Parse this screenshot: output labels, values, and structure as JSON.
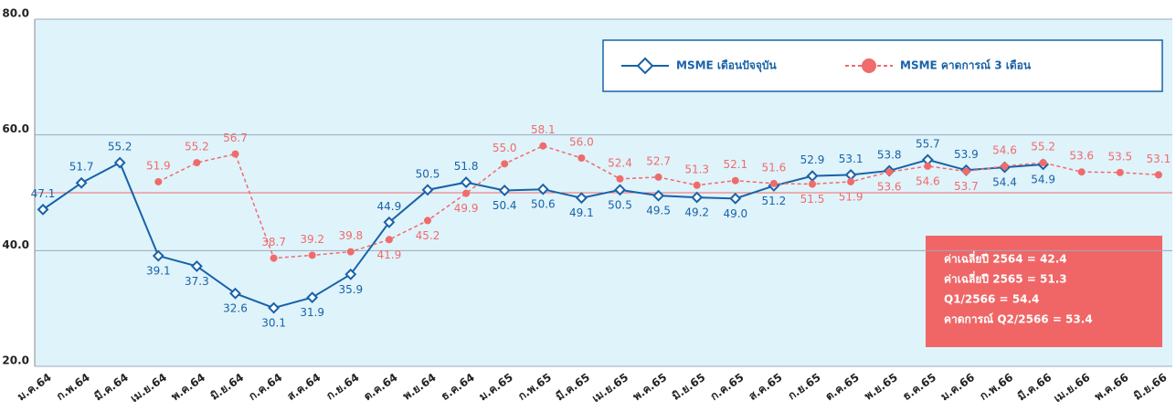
{
  "chart_data": {
    "type": "line",
    "categories": [
      "ม.ค.64",
      "ก.พ.64",
      "มี.ค.64",
      "เม.ย.64",
      "พ.ค.64",
      "มิ.ย.64",
      "ก.ค.64",
      "ส.ค.64",
      "ก.ย.64",
      "ต.ค.64",
      "พ.ย.64",
      "ธ.ค.64",
      "ม.ค.65",
      "ก.พ.65",
      "มี.ค.65",
      "เม.ย.65",
      "พ.ค.65",
      "มิ.ย.65",
      "ก.ค.65",
      "ส.ค.65",
      "ก.ย.65",
      "ต.ค.65",
      "พ.ย.65",
      "ธ.ค.65",
      "ม.ค.66",
      "ก.พ.66",
      "มี.ค.66",
      "เม.ย.66",
      "พ.ค.66",
      "มิ.ย.66"
    ],
    "series": [
      {
        "name": "MSME เดือนปัจจุบัน",
        "color": "#1862a8",
        "marker": "diamond",
        "dashed": false,
        "values": [
          47.1,
          51.7,
          55.2,
          39.1,
          37.3,
          32.6,
          30.1,
          31.9,
          35.9,
          44.9,
          50.5,
          51.8,
          50.4,
          50.6,
          49.1,
          50.5,
          49.5,
          49.2,
          49.0,
          51.2,
          52.9,
          53.1,
          53.8,
          55.7,
          53.9,
          54.4,
          54.9,
          null,
          null,
          null
        ],
        "value_labels": [
          "47.1",
          "51.7",
          "55.2",
          "39.1",
          "37.3",
          "32.6",
          "30.1",
          "31.9",
          "35.9",
          "44.9",
          "50.5",
          "51.8",
          "50.4",
          "50.6",
          "49.1",
          "50.5",
          "49.5",
          "49.2",
          "49.0",
          "51.2",
          "52.9",
          "53.1",
          "53.8",
          "55.7",
          "53.9",
          "54.4",
          "54.9",
          null,
          null,
          null
        ]
      },
      {
        "name": "MSME คาดการณ์ 3 เดือน",
        "color": "#f06b6b",
        "marker": "circle",
        "dashed": true,
        "values": [
          null,
          null,
          null,
          51.9,
          55.2,
          56.7,
          38.7,
          39.2,
          39.8,
          41.9,
          45.2,
          49.9,
          55.0,
          58.1,
          56.0,
          52.4,
          52.7,
          51.3,
          52.1,
          51.6,
          51.5,
          51.9,
          53.6,
          54.6,
          53.7,
          54.6,
          55.2,
          53.6,
          53.5,
          53.1
        ],
        "value_labels": [
          null,
          null,
          null,
          "51.9",
          "55.2",
          "56.7",
          "38.7",
          "39.2",
          "39.8",
          "41.9",
          "45.2",
          "49.9",
          "55.0",
          "58.1",
          "56.0",
          "52.4",
          "52.7",
          "51.3",
          "52.1",
          "51.6",
          "51.5",
          "51.9",
          "53.6",
          "54.6",
          "53.7",
          "54.6",
          "55.2",
          "53.6",
          "53.5",
          "53.1"
        ]
      }
    ],
    "ylim": [
      20,
      80
    ],
    "yticks": [
      {
        "value": 20,
        "label": "20.0"
      },
      {
        "value": 40,
        "label": "40.0"
      },
      {
        "value": 60,
        "label": "60.0"
      },
      {
        "value": 80,
        "label": "80.0"
      }
    ],
    "reference_line": 50,
    "annotation": [
      "ค่าเฉลี่ยปี 2564 = 42.4",
      "ค่าเฉลี่ยปี 2565 = 51.3",
      "Q1/2566 = 54.4",
      "คาดการณ์ Q2/2566 = 53.4"
    ]
  }
}
